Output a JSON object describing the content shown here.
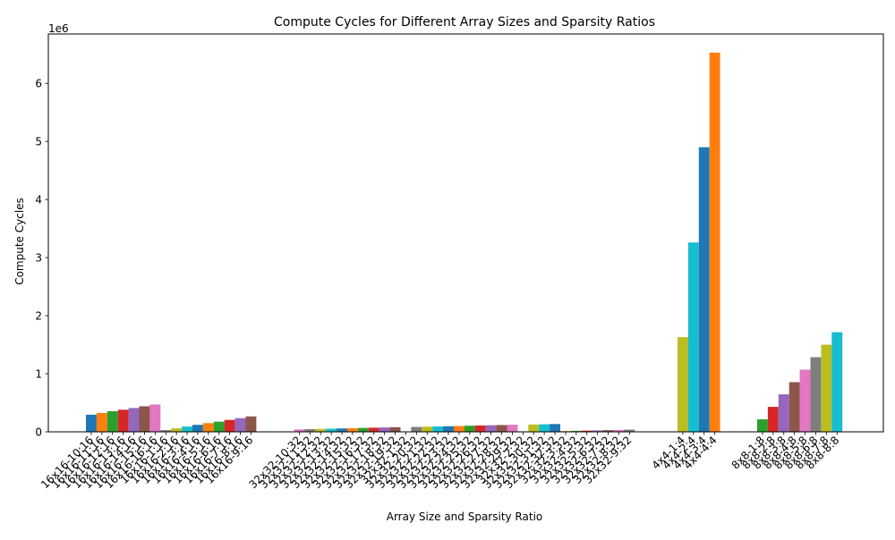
{
  "chart_data": {
    "type": "bar",
    "title": "Compute Cycles for Different Array Sizes and Sparsity Ratios",
    "xlabel": "Array Size and Sparsity Ratio",
    "ylabel": "Compute Cycles",
    "y_multiplier_label": "1e6",
    "ylim": [
      0,
      6850000
    ],
    "yticks": [
      0,
      1000000,
      2000000,
      3000000,
      4000000,
      5000000,
      6000000
    ],
    "ytick_labels": [
      "0",
      "1",
      "2",
      "3",
      "4",
      "5",
      "6"
    ],
    "grid": false,
    "legend": "none",
    "palette": [
      "#1f77b4",
      "#ff7f0e",
      "#2ca02c",
      "#d62728",
      "#9467bd",
      "#8c564b",
      "#e377c2",
      "#7f7f7f",
      "#bcbd22",
      "#17becf"
    ],
    "groups": [
      {
        "categories": [
          "16x16-10:16",
          "16x16-11:16",
          "16x16-12:16",
          "16x16-13:16",
          "16x16-14:16",
          "16x16-15:16",
          "16x16-16:16",
          "16x16-1:16",
          "16x16-2:16",
          "16x16-3:16",
          "16x16-4:16",
          "16x16-5:16",
          "16x16-6:16",
          "16x16-7:16",
          "16x16-8:16",
          "16x16-9:16"
        ],
        "values": [
          295000,
          325000,
          355000,
          380000,
          410000,
          440000,
          470000,
          30000,
          60000,
          90000,
          120000,
          150000,
          175000,
          205000,
          235000,
          265000
        ]
      },
      {
        "categories": [
          "32x32-10:32",
          "32x32-11:32",
          "32x32-12:32",
          "32x32-13:32",
          "32x32-14:32",
          "32x32-15:32",
          "32x32-16:32",
          "32x32-17:32",
          "32x32-18:32",
          "32x32-19:32",
          "32x32-1:32",
          "32x32-20:32",
          "32x32-21:32",
          "32x32-22:32",
          "32x32-23:32",
          "32x32-24:32",
          "32x32-25:32",
          "32x32-26:32",
          "32x32-27:32",
          "32x32-28:32",
          "32x32-29:32",
          "32x32-2:32",
          "32x32-30:32",
          "32x32-31:32",
          "32x32-32:32",
          "32x32-3:32",
          "32x32-4:32",
          "32x32-5:32",
          "32x32-6:32",
          "32x32-7:32",
          "32x32-8:32",
          "32x32-9:32"
        ],
        "values": [
          42000,
          46000,
          50000,
          54000,
          58000,
          63000,
          67000,
          71000,
          75000,
          80000,
          4000,
          84000,
          88000,
          92000,
          96000,
          100000,
          105000,
          109000,
          113000,
          117000,
          122000,
          8000,
          126000,
          130000,
          134000,
          12000,
          17000,
          21000,
          25000,
          29000,
          33000,
          38000
        ]
      },
      {
        "categories": [
          "4x4-1:4",
          "4x4-2:4",
          "4x4-3:4",
          "4x4-4:4"
        ],
        "values": [
          1630000,
          3260000,
          4900000,
          6530000
        ]
      },
      {
        "categories": [
          "8x8-1:8",
          "8x8-2:8",
          "8x8-3:8",
          "8x8-4:8",
          "8x8-5:8",
          "8x8-6:8",
          "8x8-7:8",
          "8x8-8:8"
        ],
        "values": [
          215000,
          430000,
          645000,
          855000,
          1070000,
          1285000,
          1500000,
          1715000
        ]
      }
    ]
  }
}
